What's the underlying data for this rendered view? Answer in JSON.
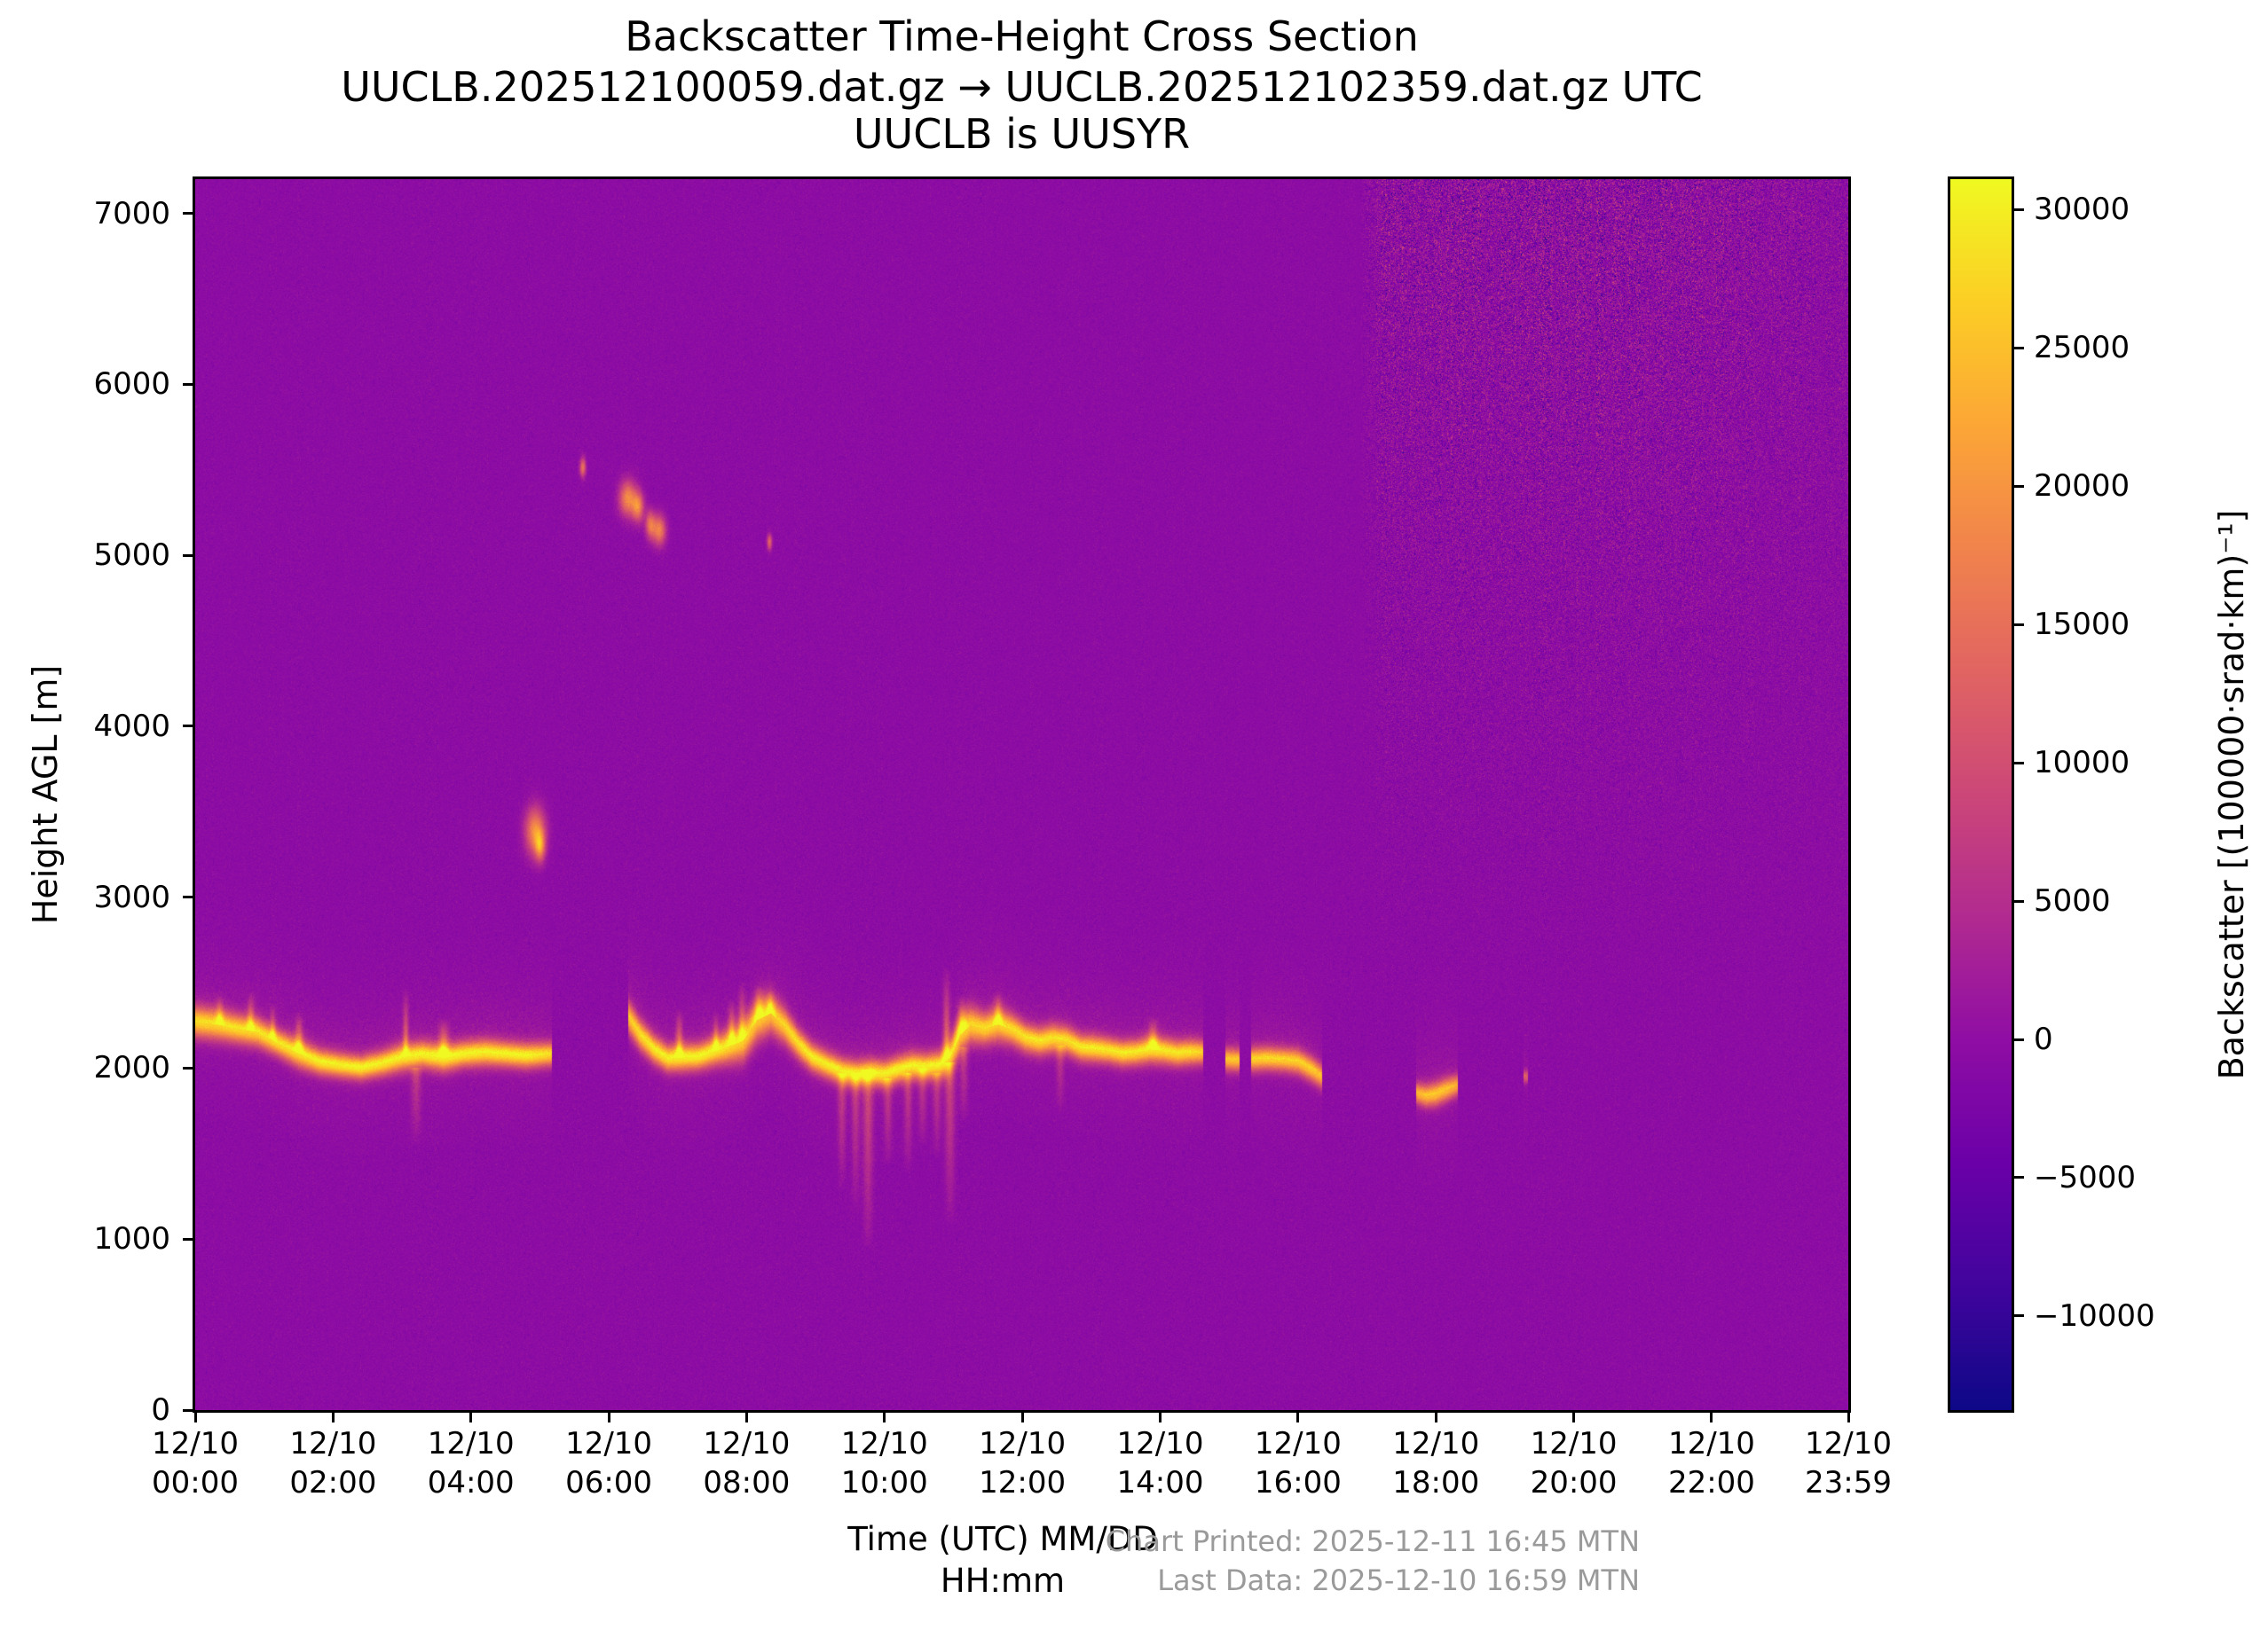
{
  "title": {
    "line1": "Backscatter Time-Height Cross Section",
    "line2": "UUCLB.202512100059.dat.gz → UUCLB.202512102359.dat.gz UTC",
    "line3": "UUCLB is UUSYR"
  },
  "footer": {
    "chart_printed": "Chart Printed: 2025-12-11 16:45 MTN",
    "last_data": "Last Data: 2025-12-10 16:59 MTN"
  },
  "colors": {
    "text": "#000000",
    "footer_gray": "#9a9a9a",
    "axis": "#000000",
    "figure_background": "#ffffff"
  },
  "chart_data": {
    "type": "heatmap",
    "title": "Backscatter Time-Height Cross Section",
    "xlabel1": "Time (UTC) MM/DD",
    "xlabel2": "HH:mm",
    "ylabel": "Height AGL [m]",
    "colorbar_label": "Backscatter [(100000·srad·km)⁻¹]",
    "x_range_hours": [
      0,
      23.9833
    ],
    "y_range_m": [
      0,
      7200
    ],
    "grid": false,
    "x_ticks": [
      {
        "hours": 0,
        "date": "12/10",
        "time": "00:00"
      },
      {
        "hours": 2,
        "date": "12/10",
        "time": "02:00"
      },
      {
        "hours": 4,
        "date": "12/10",
        "time": "04:00"
      },
      {
        "hours": 6,
        "date": "12/10",
        "time": "06:00"
      },
      {
        "hours": 8,
        "date": "12/10",
        "time": "08:00"
      },
      {
        "hours": 10,
        "date": "12/10",
        "time": "10:00"
      },
      {
        "hours": 12,
        "date": "12/10",
        "time": "12:00"
      },
      {
        "hours": 14,
        "date": "12/10",
        "time": "14:00"
      },
      {
        "hours": 16,
        "date": "12/10",
        "time": "16:00"
      },
      {
        "hours": 18,
        "date": "12/10",
        "time": "18:00"
      },
      {
        "hours": 20,
        "date": "12/10",
        "time": "20:00"
      },
      {
        "hours": 22,
        "date": "12/10",
        "time": "22:00"
      },
      {
        "hours": 23.9833,
        "date": "12/10",
        "time": "23:59"
      }
    ],
    "y_ticks": [
      {
        "m": 0,
        "label": "0"
      },
      {
        "m": 1000,
        "label": "1000"
      },
      {
        "m": 2000,
        "label": "2000"
      },
      {
        "m": 3000,
        "label": "3000"
      },
      {
        "m": 4000,
        "label": "4000"
      },
      {
        "m": 5000,
        "label": "5000"
      },
      {
        "m": 6000,
        "label": "6000"
      },
      {
        "m": 7000,
        "label": "7000"
      }
    ],
    "colorbar": {
      "vmin": -13400,
      "vmax": 31100,
      "ticks": [
        {
          "value": 30000,
          "label": "30000"
        },
        {
          "value": 25000,
          "label": "25000"
        },
        {
          "value": 20000,
          "label": "20000"
        },
        {
          "value": 15000,
          "label": "15000"
        },
        {
          "value": 10000,
          "label": "10000"
        },
        {
          "value": 5000,
          "label": "5000"
        },
        {
          "value": 0,
          "label": "0"
        },
        {
          "value": -5000,
          "label": "−5000"
        },
        {
          "value": -10000,
          "label": "−10000"
        }
      ]
    },
    "colormap": {
      "name": "plasma",
      "stops": [
        [
          0.0,
          "#0d0887"
        ],
        [
          0.1,
          "#41049d"
        ],
        [
          0.2,
          "#6a00a8"
        ],
        [
          0.3,
          "#8f0da4"
        ],
        [
          0.4,
          "#b12a90"
        ],
        [
          0.5,
          "#cc4778"
        ],
        [
          0.6,
          "#e16462"
        ],
        [
          0.7,
          "#f1834c"
        ],
        [
          0.8,
          "#fca636"
        ],
        [
          0.9,
          "#fcce25"
        ],
        [
          1.0,
          "#f0f921"
        ]
      ]
    },
    "field": {
      "comment_units": "band_segments: [t_hours, cloudbase_m, sigma_m, peak]; band_spikes: [t, top_m, sigma_t, peak]; blobs: [t, h_m, sigma_t, sigma_h, peak]; virga: [t, h_top_m, h_bot_m, sigma_t, peak]",
      "seed": 42,
      "base_value": -300,
      "noise_sigma": 680,
      "column_stripe_sigma": 190,
      "band_segments": [
        [
          [
            0.0,
            2270,
            60,
            26000
          ],
          [
            0.3,
            2255,
            60,
            26000
          ],
          [
            0.6,
            2230,
            55,
            26500
          ],
          [
            0.9,
            2210,
            55,
            26500
          ],
          [
            1.2,
            2145,
            50,
            27000
          ],
          [
            1.5,
            2085,
            55,
            27000
          ],
          [
            1.8,
            2035,
            48,
            28000
          ],
          [
            2.1,
            2015,
            46,
            28000
          ],
          [
            2.4,
            2000,
            45,
            28500
          ],
          [
            2.7,
            2025,
            47,
            28000
          ],
          [
            3.0,
            2062,
            52,
            28000
          ],
          [
            3.3,
            2078,
            50,
            28500
          ],
          [
            3.6,
            2058,
            52,
            28500
          ],
          [
            3.9,
            2080,
            48,
            28500
          ],
          [
            4.2,
            2090,
            50,
            28000
          ],
          [
            4.5,
            2080,
            47,
            28500
          ],
          [
            4.8,
            2070,
            47,
            28500
          ],
          [
            5.17,
            2080,
            45,
            26000
          ]
        ],
        [
          [
            6.28,
            2300,
            62,
            24000
          ],
          [
            6.45,
            2195,
            58,
            26000
          ],
          [
            6.65,
            2110,
            53,
            27500
          ],
          [
            6.85,
            2055,
            50,
            28000
          ],
          [
            7.05,
            2060,
            52,
            28000
          ],
          [
            7.3,
            2065,
            50,
            28500
          ],
          [
            7.55,
            2100,
            55,
            28000
          ],
          [
            7.8,
            2135,
            68,
            26500
          ],
          [
            7.95,
            2160,
            78,
            25500
          ],
          [
            8.15,
            2280,
            82,
            24500
          ],
          [
            8.35,
            2320,
            76,
            24000
          ],
          [
            8.55,
            2245,
            66,
            25000
          ],
          [
            8.75,
            2140,
            56,
            26500
          ],
          [
            8.95,
            2060,
            52,
            27500
          ],
          [
            9.15,
            2020,
            50,
            27500
          ],
          [
            9.4,
            1975,
            50,
            28000
          ],
          [
            9.6,
            1962,
            50,
            28000
          ],
          [
            9.8,
            1972,
            50,
            28500
          ],
          [
            10.0,
            1962,
            50,
            28000
          ],
          [
            10.2,
            1990,
            50,
            28500
          ],
          [
            10.4,
            2010,
            52,
            28000
          ],
          [
            10.6,
            2005,
            50,
            28000
          ],
          [
            10.8,
            2015,
            52,
            28500
          ],
          [
            10.95,
            2060,
            68,
            26500
          ],
          [
            11.1,
            2195,
            75,
            25000
          ],
          [
            11.25,
            2250,
            70,
            25000
          ],
          [
            11.45,
            2230,
            60,
            26000
          ],
          [
            11.65,
            2255,
            65,
            25500
          ],
          [
            11.85,
            2225,
            58,
            26000
          ],
          [
            12.05,
            2175,
            54,
            26500
          ],
          [
            12.25,
            2155,
            52,
            27000
          ],
          [
            12.45,
            2172,
            54,
            26500
          ],
          [
            12.65,
            2160,
            52,
            26500
          ],
          [
            12.85,
            2118,
            50,
            27000
          ],
          [
            13.05,
            2112,
            50,
            27500
          ],
          [
            13.25,
            2102,
            48,
            27000
          ],
          [
            13.45,
            2085,
            48,
            27500
          ],
          [
            13.65,
            2090,
            48,
            27000
          ],
          [
            13.85,
            2108,
            52,
            27500
          ],
          [
            14.05,
            2100,
            50,
            27000
          ],
          [
            14.25,
            2085,
            48,
            27000
          ],
          [
            14.45,
            2092,
            48,
            26500
          ],
          [
            14.62,
            2090,
            45,
            24500
          ]
        ],
        [
          [
            14.95,
            2050,
            43,
            24000
          ],
          [
            15.15,
            2045,
            43,
            24000
          ]
        ],
        [
          [
            15.32,
            2050,
            45,
            25000
          ],
          [
            15.55,
            2055,
            45,
            25500
          ],
          [
            15.8,
            2048,
            45,
            25000
          ],
          [
            16.0,
            2038,
            47,
            25000
          ],
          [
            16.2,
            1992,
            47,
            24500
          ],
          [
            16.35,
            1948,
            45,
            23000
          ]
        ],
        [
          [
            17.72,
            1852,
            40,
            22000
          ],
          [
            17.86,
            1836,
            43,
            23500
          ],
          [
            18.0,
            1846,
            45,
            24000
          ],
          [
            18.15,
            1872,
            45,
            23500
          ],
          [
            18.32,
            1898,
            40,
            21000
          ]
        ],
        [
          [
            19.27,
            1950,
            25,
            12000
          ],
          [
            19.34,
            1948,
            25,
            12000
          ]
        ]
      ],
      "band_spikes": [
        [
          0.35,
          2430,
          0.035,
          12000
        ],
        [
          0.8,
          2455,
          0.035,
          12000
        ],
        [
          1.12,
          2380,
          0.03,
          11000
        ],
        [
          1.5,
          2330,
          0.04,
          14000
        ],
        [
          3.05,
          2480,
          0.028,
          12000
        ],
        [
          3.6,
          2295,
          0.05,
          16000
        ],
        [
          7.02,
          2350,
          0.035,
          14000
        ],
        [
          7.55,
          2330,
          0.03,
          12000
        ],
        [
          7.78,
          2405,
          0.035,
          14000
        ],
        [
          7.93,
          2505,
          0.035,
          12000
        ],
        [
          8.18,
          2485,
          0.045,
          13000
        ],
        [
          8.34,
          2450,
          0.04,
          13000
        ],
        [
          10.9,
          2605,
          0.035,
          12000
        ],
        [
          11.12,
          2425,
          0.05,
          13000
        ],
        [
          11.65,
          2448,
          0.04,
          12000
        ],
        [
          13.9,
          2302,
          0.045,
          14000
        ]
      ],
      "blobs": [
        [
          4.93,
          3385,
          0.1,
          95,
          20000
        ],
        [
          5.0,
          3298,
          0.05,
          60,
          16000
        ],
        [
          5.62,
          5515,
          0.03,
          38,
          16000
        ],
        [
          6.27,
          5335,
          0.085,
          70,
          19000
        ],
        [
          6.42,
          5285,
          0.06,
          60,
          18000
        ],
        [
          6.6,
          5180,
          0.05,
          55,
          16000
        ],
        [
          6.73,
          5148,
          0.065,
          60,
          18000
        ],
        [
          8.33,
          5078,
          0.025,
          32,
          14000
        ]
      ],
      "virga": [
        [
          3.2,
          1960,
          1560,
          0.05,
          6000
        ],
        [
          9.38,
          1930,
          1280,
          0.04,
          7000
        ],
        [
          9.58,
          1930,
          1150,
          0.04,
          7000
        ],
        [
          9.76,
          1950,
          930,
          0.05,
          9000
        ],
        [
          10.05,
          1900,
          1430,
          0.04,
          6500
        ],
        [
          10.34,
          1930,
          1380,
          0.04,
          6500
        ],
        [
          10.55,
          1960,
          1540,
          0.04,
          6000
        ],
        [
          10.76,
          1930,
          1480,
          0.04,
          6000
        ],
        [
          10.95,
          1990,
          1080,
          0.05,
          8000
        ],
        [
          11.15,
          2080,
          1680,
          0.04,
          6000
        ],
        [
          12.55,
          2090,
          1740,
          0.04,
          5500
        ]
      ],
      "upper_noise": {
        "t_start": 16.9,
        "t_full": 17.3,
        "t_fade_start": 21.5,
        "end_level": 0.55,
        "h_min": 2200,
        "h_max": 6800,
        "amp": 3300,
        "exponent": 1.4,
        "bias": 280
      }
    }
  }
}
